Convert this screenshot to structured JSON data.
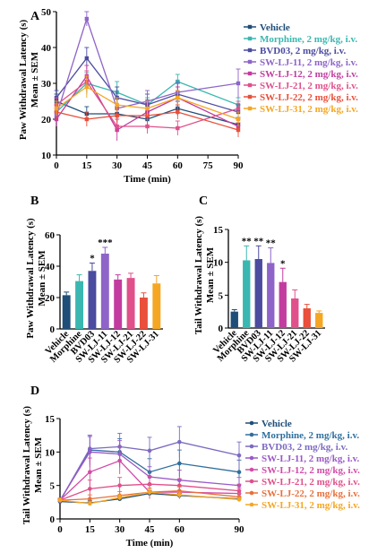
{
  "panels": {
    "A": {
      "letter": "A"
    },
    "B": {
      "letter": "B"
    },
    "C": {
      "letter": "C"
    },
    "D": {
      "letter": "D"
    }
  },
  "chart_data": [
    {
      "id": "A",
      "type": "line",
      "ylabel": "Paw Withdrawal Latency (s)\nMean ± SEM",
      "xlabel": "Time (min)",
      "x": [
        0,
        15,
        30,
        45,
        60,
        75,
        90
      ],
      "xticks": [
        0,
        15,
        30,
        45,
        60,
        75,
        90
      ],
      "yticks": [
        10,
        20,
        30,
        40,
        50
      ],
      "ylim": [
        10,
        50
      ],
      "xlim": [
        0,
        90
      ],
      "legend": "right",
      "series": [
        {
          "name": "Vehicle",
          "color": "#1f4e79",
          "x": [
            0,
            15,
            30,
            45,
            60,
            90
          ],
          "values": [
            25,
            21.5,
            21.5,
            20,
            23,
            18.5
          ],
          "err": [
            2,
            2,
            2,
            2,
            2,
            2
          ]
        },
        {
          "name": "Morphine, 2 mg/kg, i.v.",
          "color": "#3ab7b0",
          "x": [
            0,
            15,
            30,
            45,
            60,
            90
          ],
          "values": [
            22,
            30,
            27.5,
            24,
            30.5,
            24
          ],
          "err": [
            2,
            3,
            3,
            2,
            2,
            2
          ]
        },
        {
          "name": "BVD03, 2 mg/kg, i.v.",
          "color": "#4b4ba0",
          "x": [
            0,
            15,
            30,
            45,
            60,
            90
          ],
          "values": [
            26,
            37,
            26,
            24,
            27,
            22
          ],
          "err": [
            2,
            3,
            3,
            3,
            3,
            2
          ]
        },
        {
          "name": "SW-LJ-11, 2 mg/kg, i.v.",
          "color": "#8e64c8",
          "x": [
            0,
            15,
            30,
            45,
            60,
            90
          ],
          "values": [
            21,
            48,
            23,
            25,
            27.5,
            30
          ],
          "err": [
            2,
            2,
            3,
            3,
            3,
            4
          ]
        },
        {
          "name": "SW-LJ-12, 2 mg/kg, i.v.",
          "color": "#c23ca0",
          "x": [
            0,
            15,
            30,
            45,
            60,
            90
          ],
          "values": [
            20,
            32,
            17,
            22,
            26,
            18
          ],
          "err": [
            2,
            3,
            3,
            2,
            3,
            2
          ]
        },
        {
          "name": "SW-LJ-21, 2 mg/kg, i.v.",
          "color": "#e0508a",
          "x": [
            0,
            15,
            30,
            45,
            60,
            90
          ],
          "values": [
            24,
            30.5,
            18,
            18,
            17.5,
            23
          ],
          "err": [
            2,
            3,
            2,
            2,
            2,
            2
          ]
        },
        {
          "name": "SW-LJ-22, 2 mg/kg, i.v.",
          "color": "#e94f3a",
          "x": [
            0,
            15,
            30,
            45,
            60,
            90
          ],
          "values": [
            22,
            20,
            21,
            21,
            22,
            17
          ],
          "err": [
            2,
            2,
            2,
            2,
            2,
            2
          ]
        },
        {
          "name": "SW-LJ-31, 2 mg/kg, i.v.",
          "color": "#f5a623",
          "x": [
            0,
            15,
            30,
            45,
            60,
            90
          ],
          "values": [
            23,
            29,
            24,
            23,
            26,
            20
          ],
          "err": [
            2,
            3,
            2,
            2,
            2,
            2
          ]
        }
      ]
    },
    {
      "id": "B",
      "type": "bar",
      "ylabel": "Paw Withdrawal Latency (s)\nMean ± SEM",
      "categories": [
        "Vehicle",
        "Morphine",
        "BVD03",
        "SW-LJ-11",
        "SW-LJ-12",
        "SW-LJ-21",
        "SW-LJ-22",
        "SW-LJ-31"
      ],
      "values": [
        21.5,
        30.5,
        37,
        48,
        31.5,
        32.5,
        20,
        29
      ],
      "err": [
        2,
        4,
        5,
        4,
        3,
        3,
        3,
        5
      ],
      "sig": [
        "",
        "",
        "*",
        "***",
        "",
        "",
        "",
        ""
      ],
      "colors": [
        "#1f4e79",
        "#3ab7b0",
        "#4b4ba0",
        "#8e64c8",
        "#c23ca0",
        "#e0508a",
        "#e94f3a",
        "#f5a623"
      ],
      "yticks": [
        0,
        20,
        40,
        60
      ],
      "ylim": [
        0,
        60
      ]
    },
    {
      "id": "C",
      "type": "bar",
      "ylabel": "Tail Withdrawal Latency (s)\nMean ± SEM",
      "categories": [
        "Vehicle",
        "Morphine",
        "BVD03",
        "SW-LJ-11",
        "SW-LJ-12",
        "SW-LJ-21",
        "SW-LJ-22",
        "SW-LJ-31"
      ],
      "values": [
        2.5,
        10.3,
        10.5,
        9.9,
        7.0,
        4.5,
        3.0,
        2.3
      ],
      "err": [
        0.3,
        2.2,
        2.0,
        2.3,
        2.1,
        1.3,
        0.6,
        0.3
      ],
      "sig": [
        "",
        "**",
        "**",
        "**",
        "*",
        "",
        "",
        ""
      ],
      "colors": [
        "#1f4e79",
        "#3ab7b0",
        "#4b4ba0",
        "#8e64c8",
        "#c23ca0",
        "#e0508a",
        "#e94f3a",
        "#f5a623"
      ],
      "yticks": [
        0,
        5,
        10,
        15
      ],
      "ylim": [
        0,
        15
      ]
    },
    {
      "id": "D",
      "type": "line",
      "ylabel": "Tail Withdrawal Latency (s)\nMean ± SEM",
      "xlabel": "Time (min)",
      "x": [
        0,
        15,
        30,
        45,
        60,
        90
      ],
      "xticks": [
        0,
        15,
        30,
        45,
        60,
        90
      ],
      "yticks": [
        0,
        5,
        10,
        15
      ],
      "ylim": [
        0,
        15
      ],
      "xlim": [
        0,
        90
      ],
      "legend": "right",
      "series": [
        {
          "name": "Vehicle",
          "color": "#1f4e79",
          "values": [
            2.6,
            2.4,
            3.0,
            3.8,
            3.5,
            3.0
          ],
          "err": [
            0.3,
            0.3,
            0.3,
            0.4,
            0.3,
            0.3
          ]
        },
        {
          "name": "Morphine, 2 mg/kg, i.v.",
          "color": "#2f6f9e",
          "values": [
            2.7,
            10.3,
            10.0,
            7.0,
            8.3,
            7.0
          ],
          "err": [
            0.3,
            2.2,
            2.0,
            2.0,
            2.0,
            1.8
          ]
        },
        {
          "name": "BVD03, 2 mg/kg, i.v.",
          "color": "#7c6ac2",
          "values": [
            2.7,
            10.5,
            10.8,
            10.2,
            11.5,
            9.5
          ],
          "err": [
            0.3,
            2.0,
            2.0,
            2.0,
            2.3,
            2.0
          ]
        },
        {
          "name": "SW-LJ-11, 2 mg/kg, i.v.",
          "color": "#9b59c8",
          "values": [
            2.8,
            10.0,
            9.7,
            6.3,
            5.8,
            5.0
          ],
          "err": [
            0.3,
            2.3,
            2.0,
            1.5,
            1.5,
            1.2
          ]
        },
        {
          "name": "SW-LJ-12, 2 mg/kg, i.v.",
          "color": "#d24ba8",
          "values": [
            2.8,
            7.0,
            8.7,
            4.0,
            4.0,
            3.8
          ],
          "err": [
            0.3,
            2.1,
            2.0,
            1.0,
            1.0,
            0.8
          ]
        },
        {
          "name": "SW-LJ-21, 2 mg/kg, i.v.",
          "color": "#e0508a",
          "values": [
            2.8,
            4.5,
            5.0,
            5.2,
            5.0,
            4.2
          ],
          "err": [
            0.3,
            1.3,
            1.2,
            1.2,
            1.0,
            1.0
          ]
        },
        {
          "name": "SW-LJ-22, 2 mg/kg, i.v.",
          "color": "#e8703a",
          "values": [
            2.8,
            3.0,
            3.5,
            4.0,
            4.2,
            3.3
          ],
          "err": [
            0.3,
            0.6,
            0.6,
            0.6,
            0.6,
            0.5
          ]
        },
        {
          "name": "SW-LJ-31, 2 mg/kg, i.v.",
          "color": "#f5a623",
          "values": [
            2.8,
            2.3,
            3.2,
            4.0,
            3.6,
            2.9
          ],
          "err": [
            0.3,
            0.3,
            0.4,
            0.4,
            0.4,
            0.3
          ]
        }
      ]
    }
  ]
}
